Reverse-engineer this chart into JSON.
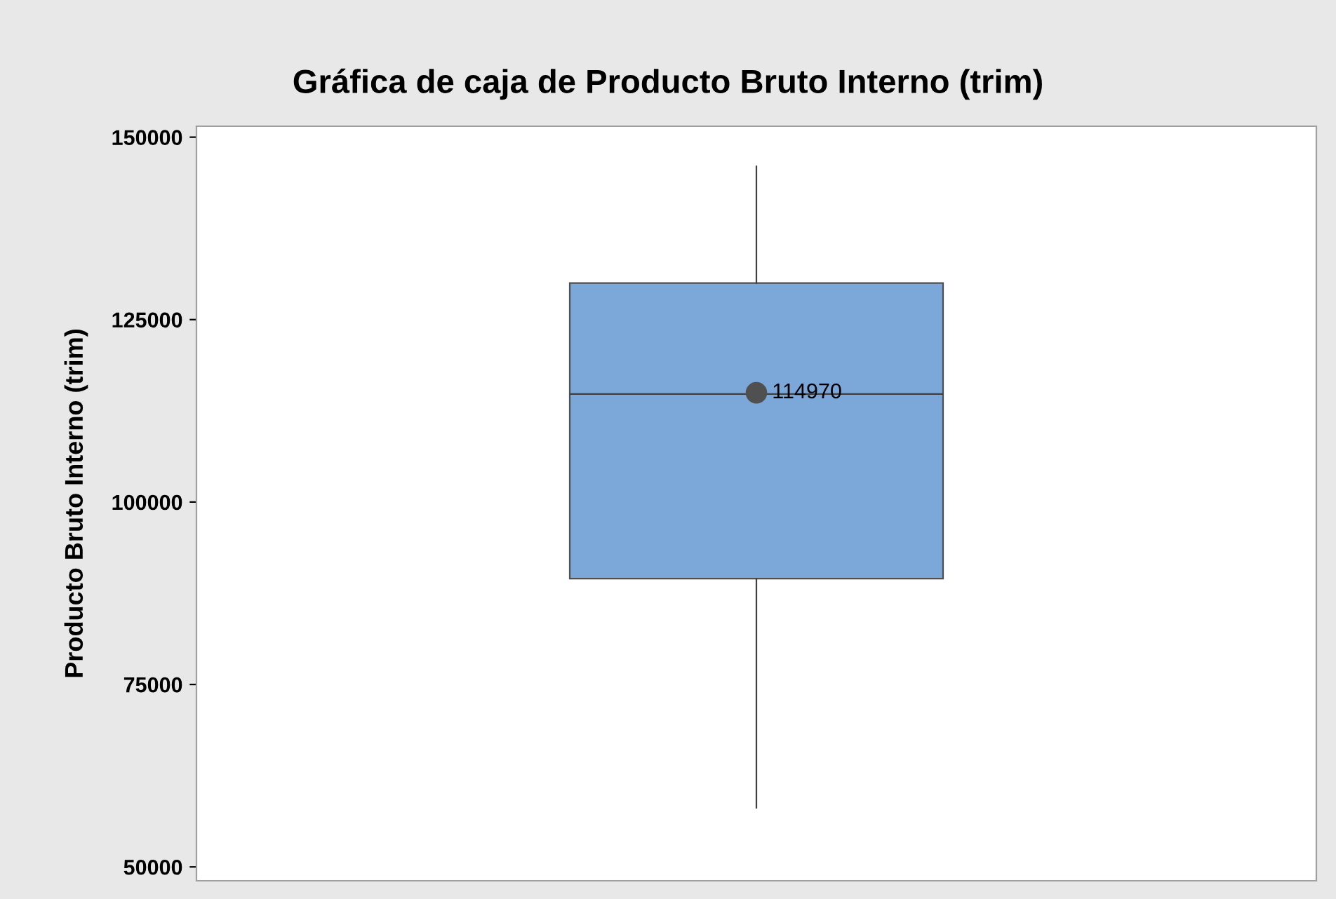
{
  "chart_data": {
    "type": "box",
    "title": "Gráfica de caja de Producto Bruto Interno (trim)",
    "ylabel": "Producto Bruto Interno (trim)",
    "categories": [
      null
    ],
    "series": [
      {
        "color": "#7ba7d9",
        "boxes": [
          {
            "low": 58100,
            "q1": 89500,
            "median": 114800,
            "q3": 130000,
            "high": 146000,
            "mean": 114970
          }
        ]
      }
    ],
    "annotations": [
      {
        "text": "114970",
        "y": 114970
      }
    ],
    "ylim": [
      48100,
      151500
    ],
    "yticks": [
      50000,
      75000,
      100000,
      125000,
      150000
    ],
    "grid": false,
    "legend": false
  }
}
